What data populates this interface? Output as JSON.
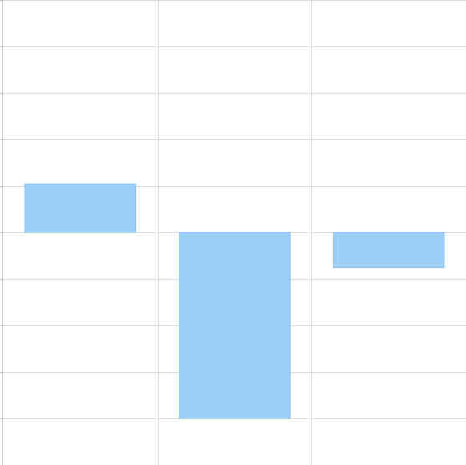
{
  "chart_data": {
    "type": "bar",
    "categories": [
      "",
      "",
      ""
    ],
    "series": [
      {
        "values": [
          1.05,
          -4.0,
          -0.75
        ]
      }
    ],
    "ylim": [
      -5,
      5
    ],
    "grid": true,
    "legend": "none",
    "title": "",
    "xlabel": "",
    "ylabel": ""
  },
  "colors": {
    "bar_fill": "#9bcff5",
    "bar_stroke": "#8ec6f0",
    "grid": "#dcdcdc",
    "axis": "#c8c8c8",
    "background": "#ffffff"
  }
}
